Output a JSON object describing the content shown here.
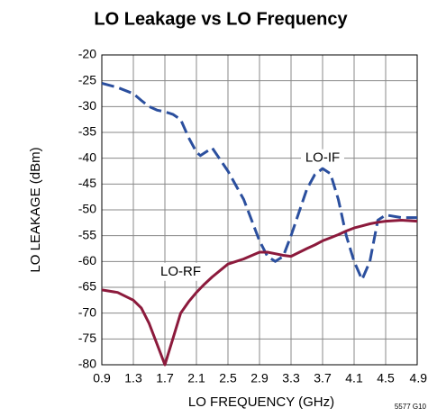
{
  "chart_data": {
    "type": "line",
    "title": "LO Leakage vs LO Frequency",
    "xlabel": "LO FREQUENCY (GHz)",
    "ylabel": "LO LEAKAGE (dBm)",
    "note": "5577 G10",
    "xlim": [
      0.9,
      4.9
    ],
    "xticks": [
      0.9,
      1.3,
      1.7,
      2.1,
      2.5,
      2.9,
      3.3,
      3.7,
      4.1,
      4.5,
      4.9
    ],
    "ylim": [
      -80,
      -20
    ],
    "yticks": [
      -80,
      -75,
      -70,
      -65,
      -60,
      -55,
      -50,
      -45,
      -40,
      -35,
      -30,
      -25,
      -20
    ],
    "grid": true,
    "x": [
      0.9,
      1.1,
      1.3,
      1.4,
      1.5,
      1.6,
      1.7,
      1.8,
      1.9,
      2.0,
      2.1,
      2.15,
      2.2,
      2.3,
      2.5,
      2.7,
      2.9,
      3.0,
      3.1,
      3.2,
      3.3,
      3.5,
      3.6,
      3.7,
      3.8,
      3.9,
      4.0,
      4.1,
      4.2,
      4.3,
      4.4,
      4.5,
      4.7,
      4.9
    ],
    "series": [
      {
        "name": "LO-IF",
        "color": "#2b4f9e",
        "dash": true,
        "values": [
          -25.5,
          -26.3,
          -27.5,
          -28.8,
          -30,
          -30.7,
          -31,
          -31.5,
          -32.5,
          -36,
          -38.8,
          -39.5,
          -39,
          -38,
          -42.5,
          -48,
          -56,
          -59,
          -60,
          -59,
          -55,
          -46,
          -43.2,
          -42,
          -43,
          -48,
          -55,
          -60,
          -63.5,
          -60,
          -52,
          -51,
          -51.5,
          -51.5
        ]
      },
      {
        "name": "LO-RF",
        "color": "#8c1a3c",
        "dash": false,
        "values": [
          -65.5,
          -66,
          -67.5,
          -69,
          -72,
          -76,
          -80,
          -75,
          -70,
          -67.8,
          -66,
          -65.2,
          -64.4,
          -63,
          -60.5,
          -59.5,
          -58.2,
          -58.2,
          -58.5,
          -58.8,
          -59,
          -57.5,
          -56.8,
          -56,
          -55.4,
          -54.8,
          -54.1,
          -53.5,
          -53.1,
          -52.7,
          -52.4,
          -52.2,
          -52,
          -52.2
        ]
      }
    ],
    "annotations": [
      {
        "text": "LO-IF",
        "x": 3.7,
        "y": -40
      },
      {
        "text": "LO-RF",
        "x": 1.9,
        "y": -62
      }
    ]
  }
}
